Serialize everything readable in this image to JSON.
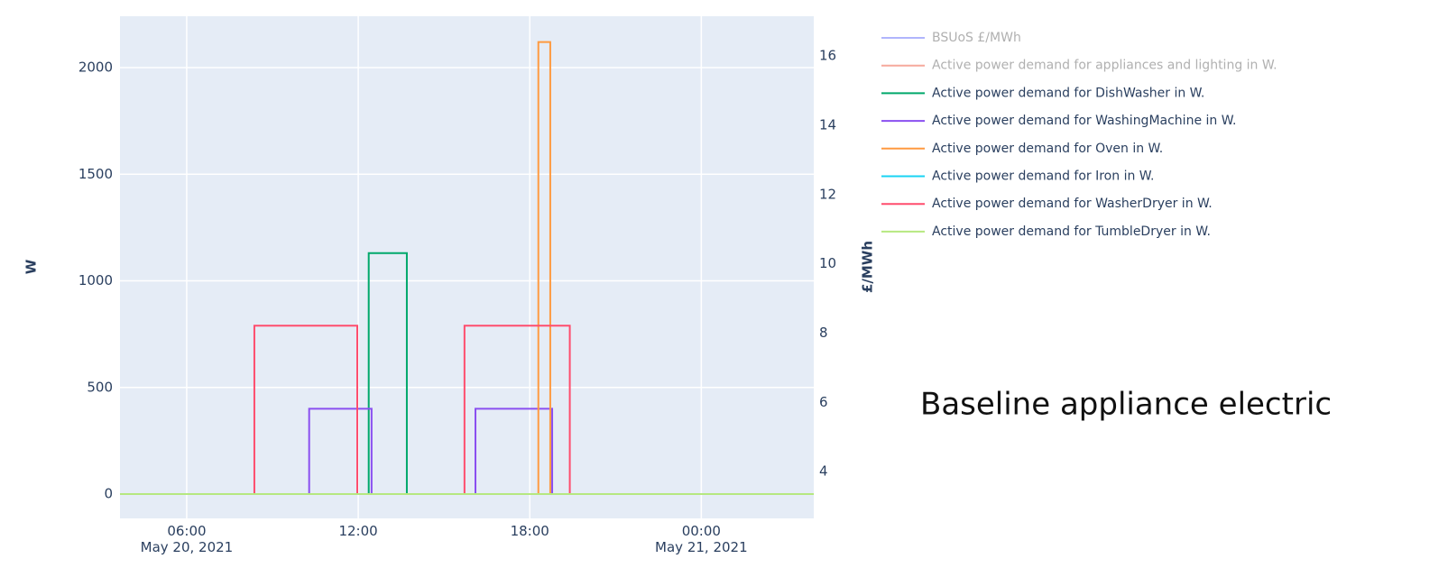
{
  "chart_data": {
    "type": "line",
    "line_shape": "hv",
    "annotation": "Baseline appliance electric",
    "y_title": "W",
    "y2_title": "£/MWh",
    "x": [
      "2021-05-20 03:40",
      "2021-05-20 08:22",
      "2021-05-20 10:17",
      "2021-05-20 11:58",
      "2021-05-20 12:22",
      "2021-05-20 12:28",
      "2021-05-20 13:42",
      "2021-05-20 15:43",
      "2021-05-20 16:06",
      "2021-05-20 18:18",
      "2021-05-20 18:43",
      "2021-05-20 18:47",
      "2021-05-20 19:24",
      "2021-05-21 03:56"
    ],
    "xlim": [
      "2021-05-20 03:40",
      "2021-05-21 03:56"
    ],
    "xticks": [
      {
        "value": "2021-05-20 06:00",
        "label": "06:00\nMay 20, 2021"
      },
      {
        "value": "2021-05-20 12:00",
        "label": "12:00"
      },
      {
        "value": "2021-05-20 18:00",
        "label": "18:00"
      },
      {
        "value": "2021-05-21 00:00",
        "label": "00:00\nMay 21, 2021"
      }
    ],
    "ylim": [
      -114,
      2241
    ],
    "yticks": [
      0,
      500,
      1000,
      1500,
      2000
    ],
    "y2lim": [
      2.65,
      17.15
    ],
    "y2ticks": [
      4,
      6,
      8,
      10,
      12,
      14,
      16
    ],
    "grid": true,
    "legend": "right",
    "series": [
      {
        "name": "BSUoS £/MWh",
        "color": "#636efa",
        "axis": "y2",
        "visible": "legendonly",
        "values": [
          null,
          null,
          null,
          null,
          null,
          null,
          null,
          null,
          null,
          null,
          null,
          null,
          null,
          null
        ]
      },
      {
        "name": "Active power demand for appliances and lighting in W.",
        "color": "#ef553b",
        "visible": "legendonly",
        "values": [
          null,
          null,
          null,
          null,
          null,
          null,
          null,
          null,
          null,
          null,
          null,
          null,
          null,
          null
        ]
      },
      {
        "name": "Active power demand for DishWasher in W.",
        "color": "#00a86b",
        "values": [
          0,
          0,
          0,
          0,
          1130,
          1130,
          0,
          0,
          0,
          0,
          0,
          0,
          0,
          0
        ]
      },
      {
        "name": "Active power demand for WashingMachine in W.",
        "color": "#8a4ff0",
        "values": [
          0,
          0,
          400,
          400,
          400,
          0,
          0,
          0,
          400,
          400,
          400,
          0,
          0,
          0
        ]
      },
      {
        "name": "Active power demand for Oven in W.",
        "color": "#ff9a40",
        "values": [
          0,
          0,
          0,
          0,
          0,
          0,
          0,
          0,
          0,
          2120,
          0,
          0,
          0,
          0
        ]
      },
      {
        "name": "Active power demand for Iron in W.",
        "color": "#19d3f3",
        "values": [
          0,
          0,
          0,
          0,
          0,
          0,
          0,
          0,
          0,
          0,
          0,
          0,
          0,
          0
        ]
      },
      {
        "name": "Active power demand for WasherDryer in W.",
        "color": "#ff4d6d",
        "values": [
          0,
          790,
          790,
          0,
          0,
          0,
          0,
          790,
          790,
          790,
          790,
          790,
          0,
          0
        ]
      },
      {
        "name": "Active power demand for TumbleDryer in W.",
        "color": "#b6e880",
        "values": [
          0,
          0,
          0,
          0,
          0,
          0,
          0,
          0,
          0,
          0,
          0,
          0,
          0,
          0
        ]
      }
    ]
  }
}
